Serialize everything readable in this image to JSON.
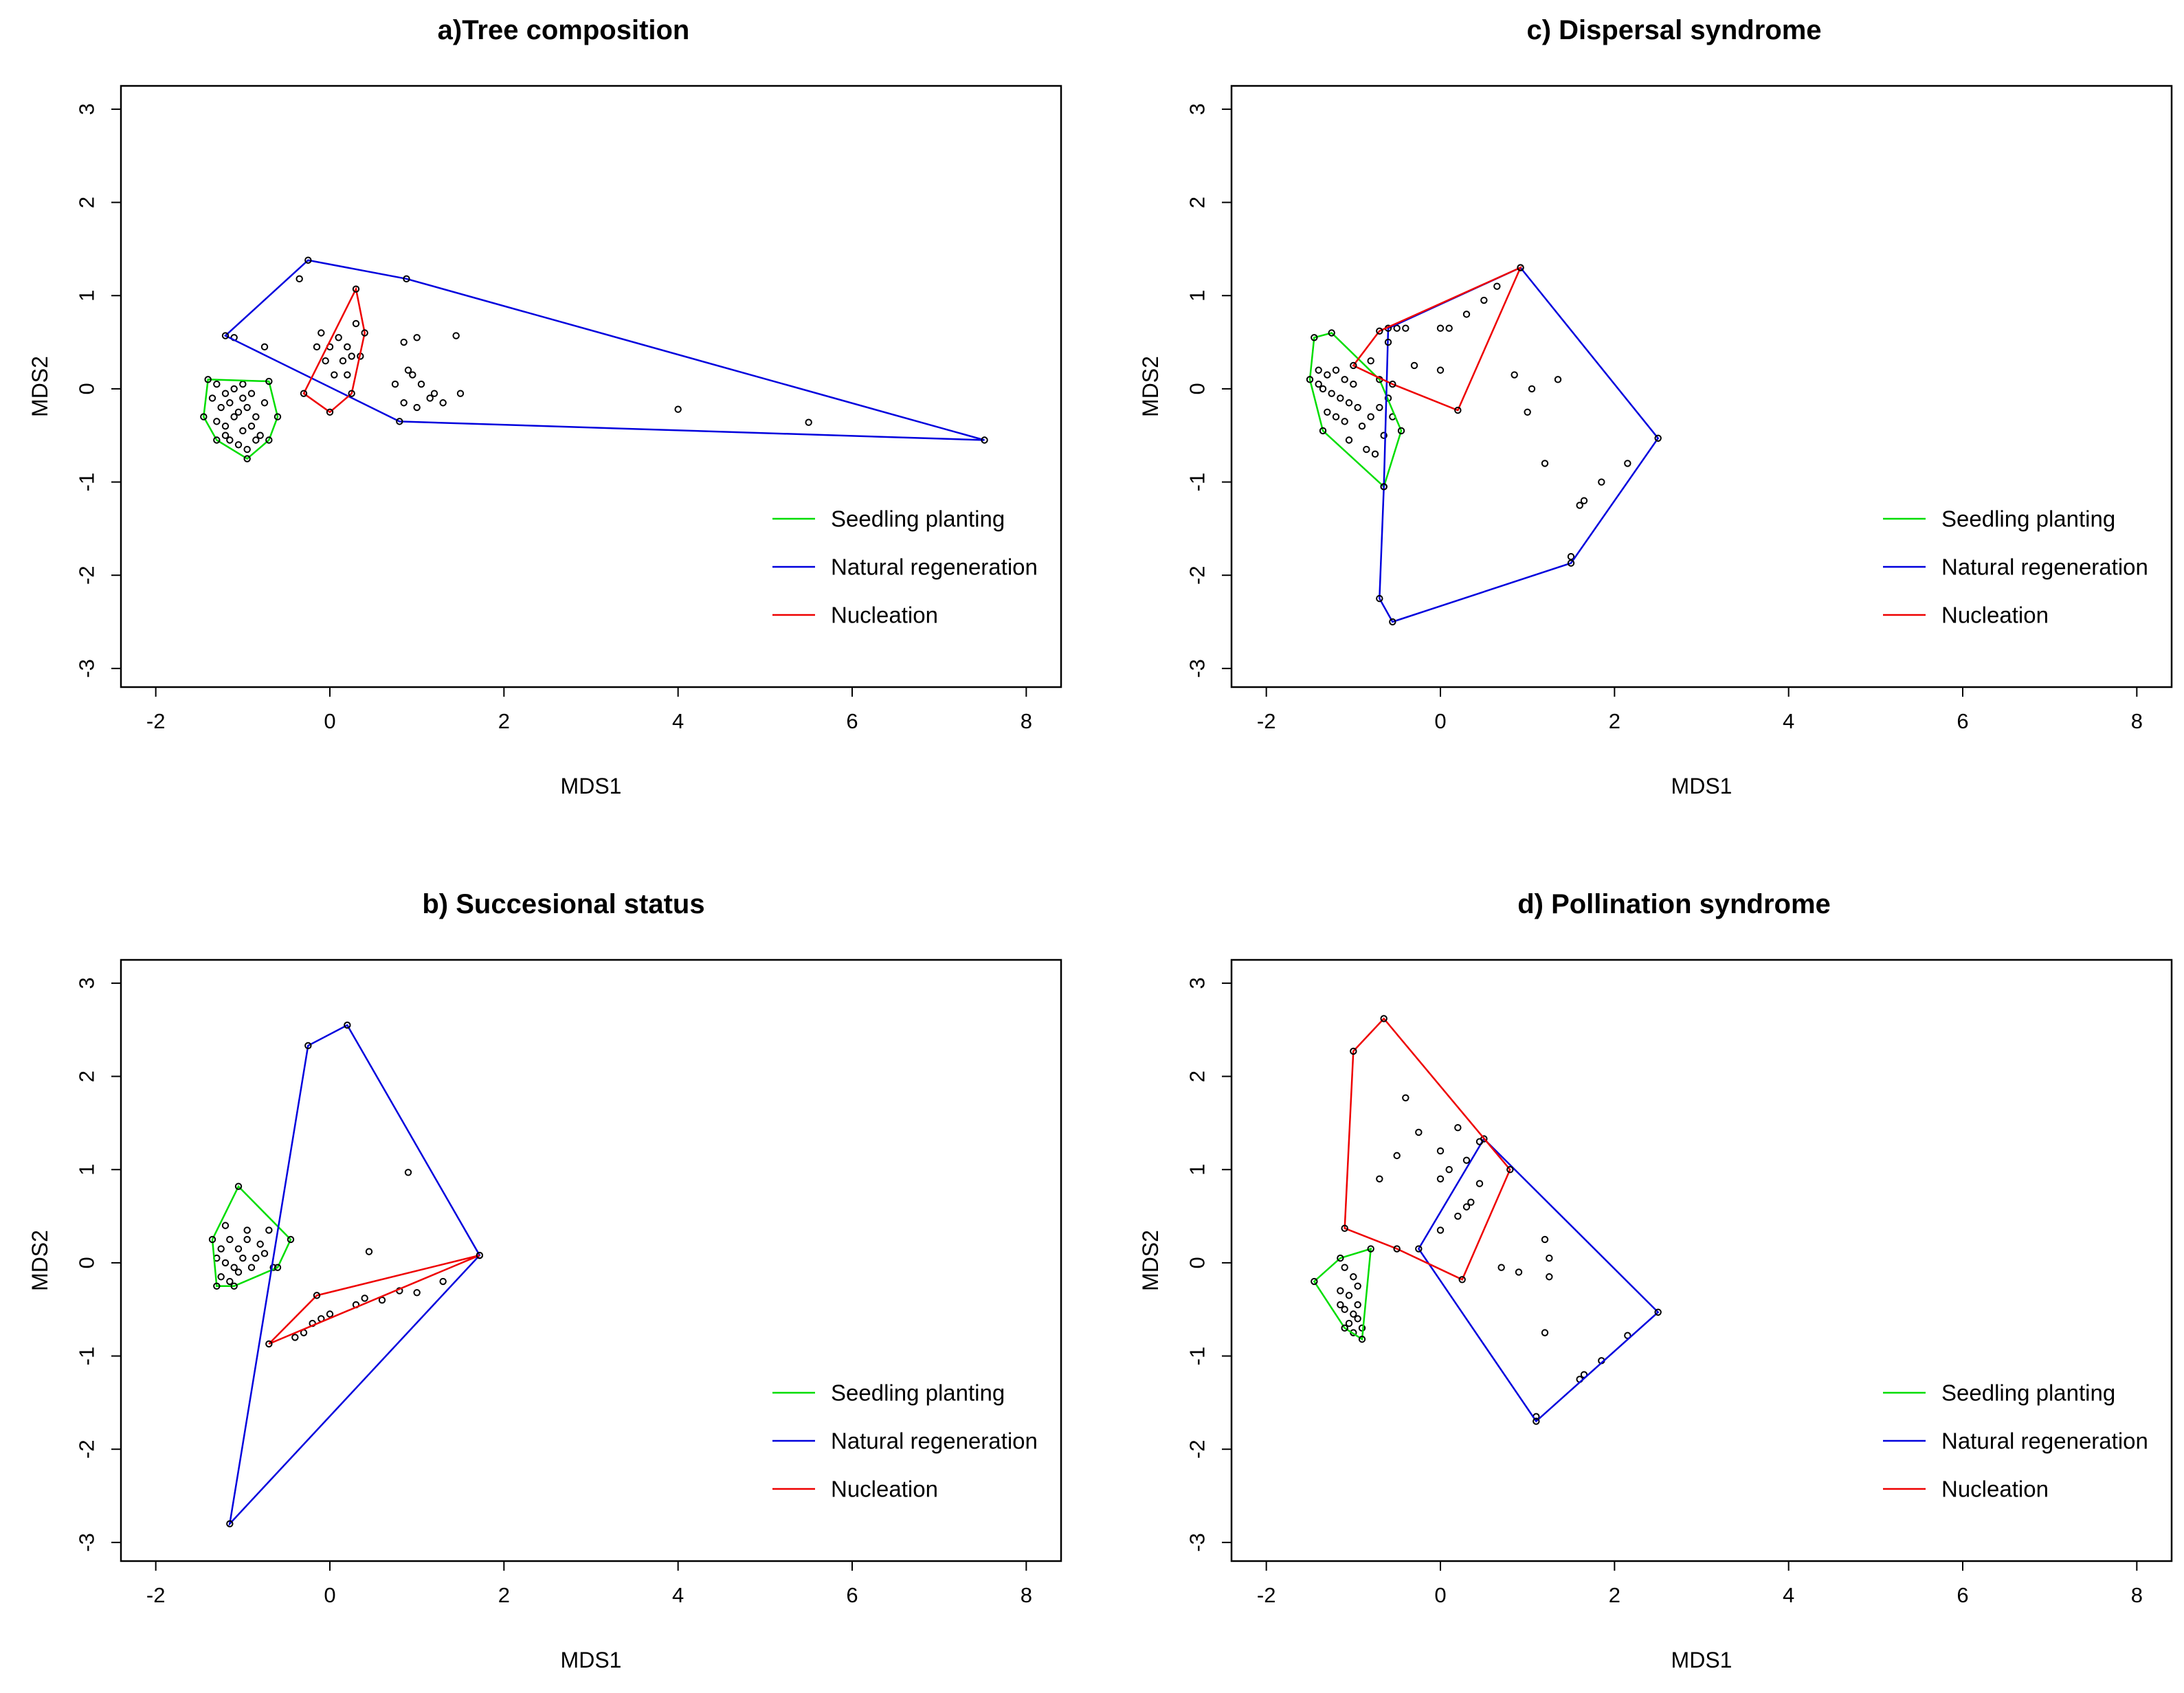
{
  "colors": {
    "seedling": "#00dd00",
    "natural": "#0000dd",
    "nucleation": "#ee0000",
    "axis": "#000000"
  },
  "chart_data": [
    {
      "type": "scatter",
      "title": "a)Tree composition",
      "xlabel": "MDS1",
      "ylabel": "MDS2",
      "xlim": [
        -2.4,
        8.4
      ],
      "ylim": [
        -3.2,
        3.25
      ],
      "xticks": [
        -2,
        0,
        2,
        4,
        6,
        8
      ],
      "yticks": [
        -3,
        -2,
        -1,
        0,
        1,
        2,
        3
      ],
      "legend_position": "bottom-right",
      "series": [
        {
          "name": "Seedling planting",
          "color_key": "seedling",
          "hull": [
            [
              -1.4,
              0.1
            ],
            [
              -0.7,
              0.08
            ],
            [
              -0.6,
              -0.3
            ],
            [
              -0.7,
              -0.55
            ],
            [
              -0.95,
              -0.75
            ],
            [
              -1.3,
              -0.55
            ],
            [
              -1.45,
              -0.3
            ]
          ],
          "points": [
            [
              -1.3,
              0.05
            ],
            [
              -1.2,
              -0.05
            ],
            [
              -1.1,
              0.0
            ],
            [
              -1.0,
              0.05
            ],
            [
              -0.9,
              -0.05
            ],
            [
              -1.25,
              -0.2
            ],
            [
              -1.15,
              -0.15
            ],
            [
              -1.05,
              -0.25
            ],
            [
              -0.95,
              -0.2
            ],
            [
              -0.85,
              -0.3
            ],
            [
              -1.3,
              -0.35
            ],
            [
              -1.2,
              -0.4
            ],
            [
              -1.1,
              -0.3
            ],
            [
              -1.0,
              -0.45
            ],
            [
              -0.9,
              -0.4
            ],
            [
              -0.8,
              -0.5
            ],
            [
              -1.15,
              -0.55
            ],
            [
              -1.05,
              -0.6
            ],
            [
              -0.95,
              -0.65
            ],
            [
              -1.35,
              -0.1
            ],
            [
              -0.75,
              -0.15
            ],
            [
              -1.0,
              -0.1
            ],
            [
              -1.2,
              -0.5
            ],
            [
              -0.85,
              -0.55
            ]
          ]
        },
        {
          "name": "Natural regeneration",
          "color_key": "natural",
          "hull": [
            [
              -1.2,
              0.57
            ],
            [
              -0.25,
              1.38
            ],
            [
              0.88,
              1.18
            ],
            [
              7.52,
              -0.55
            ],
            [
              0.8,
              -0.35
            ]
          ],
          "points": [
            [
              -1.1,
              0.55
            ],
            [
              -0.35,
              1.18
            ],
            [
              -0.75,
              0.45
            ],
            [
              0.85,
              0.5
            ],
            [
              1.0,
              0.55
            ],
            [
              1.45,
              0.57
            ],
            [
              0.75,
              0.05
            ],
            [
              0.95,
              0.15
            ],
            [
              1.05,
              0.05
            ],
            [
              1.2,
              -0.05
            ],
            [
              1.3,
              -0.15
            ],
            [
              1.5,
              -0.05
            ],
            [
              0.85,
              -0.15
            ],
            [
              1.0,
              -0.2
            ],
            [
              1.15,
              -0.1
            ],
            [
              4.0,
              -0.22
            ],
            [
              5.5,
              -0.36
            ],
            [
              0.9,
              0.2
            ]
          ]
        },
        {
          "name": "Nucleation",
          "color_key": "nucleation",
          "hull": [
            [
              -0.3,
              -0.05
            ],
            [
              0.3,
              1.07
            ],
            [
              0.4,
              0.6
            ],
            [
              0.25,
              -0.05
            ],
            [
              0.0,
              -0.25
            ]
          ],
          "points": [
            [
              -0.1,
              0.6
            ],
            [
              0.0,
              0.45
            ],
            [
              0.1,
              0.55
            ],
            [
              0.2,
              0.45
            ],
            [
              -0.05,
              0.3
            ],
            [
              0.15,
              0.3
            ],
            [
              0.25,
              0.35
            ],
            [
              0.05,
              0.15
            ],
            [
              0.2,
              0.15
            ],
            [
              0.35,
              0.35
            ],
            [
              -0.15,
              0.45
            ],
            [
              0.3,
              0.7
            ]
          ]
        }
      ]
    },
    {
      "type": "scatter",
      "title": "c) Dispersal syndrome",
      "xlabel": "MDS1",
      "ylabel": "MDS2",
      "xlim": [
        -2.4,
        8.4
      ],
      "ylim": [
        -3.2,
        3.25
      ],
      "xticks": [
        -2,
        0,
        2,
        4,
        6,
        8
      ],
      "yticks": [
        -3,
        -2,
        -1,
        0,
        1,
        2,
        3
      ],
      "legend_position": "bottom-right",
      "series": [
        {
          "name": "Seedling planting",
          "color_key": "seedling",
          "hull": [
            [
              -1.45,
              0.55
            ],
            [
              -1.25,
              0.6
            ],
            [
              -0.7,
              0.1
            ],
            [
              -0.45,
              -0.45
            ],
            [
              -0.65,
              -1.05
            ],
            [
              -1.35,
              -0.45
            ],
            [
              -1.5,
              0.1
            ]
          ],
          "points": [
            [
              -1.4,
              0.2
            ],
            [
              -1.3,
              0.15
            ],
            [
              -1.2,
              0.2
            ],
            [
              -1.1,
              0.1
            ],
            [
              -1.0,
              0.05
            ],
            [
              -1.35,
              0.0
            ],
            [
              -1.25,
              -0.05
            ],
            [
              -1.15,
              -0.1
            ],
            [
              -1.05,
              -0.15
            ],
            [
              -0.95,
              -0.2
            ],
            [
              -1.3,
              -0.25
            ],
            [
              -1.2,
              -0.3
            ],
            [
              -1.1,
              -0.35
            ],
            [
              -0.9,
              -0.4
            ],
            [
              -0.8,
              -0.3
            ],
            [
              -0.7,
              -0.2
            ],
            [
              -0.6,
              -0.1
            ],
            [
              -0.55,
              -0.3
            ],
            [
              -0.65,
              -0.5
            ],
            [
              -0.85,
              -0.65
            ],
            [
              -1.05,
              -0.55
            ],
            [
              -1.4,
              0.05
            ],
            [
              -0.75,
              -0.7
            ]
          ]
        },
        {
          "name": "Natural regeneration",
          "color_key": "natural",
          "hull": [
            [
              -0.6,
              0.65
            ],
            [
              0.92,
              1.3
            ],
            [
              2.5,
              -0.53
            ],
            [
              1.5,
              -1.87
            ],
            [
              -0.55,
              -2.5
            ],
            [
              -0.7,
              -2.25
            ],
            [
              -0.65,
              -1.05
            ]
          ],
          "points": [
            [
              -0.5,
              0.65
            ],
            [
              -0.4,
              0.65
            ],
            [
              0.0,
              0.65
            ],
            [
              0.1,
              0.65
            ],
            [
              0.3,
              0.8
            ],
            [
              0.5,
              0.95
            ],
            [
              0.65,
              1.1
            ],
            [
              0.85,
              0.15
            ],
            [
              1.05,
              0.0
            ],
            [
              1.35,
              0.1
            ],
            [
              1.0,
              -0.25
            ],
            [
              1.2,
              -0.8
            ],
            [
              1.6,
              -1.25
            ],
            [
              1.65,
              -1.2
            ],
            [
              1.85,
              -1.0
            ],
            [
              2.15,
              -0.8
            ],
            [
              1.5,
              -1.8
            ]
          ]
        },
        {
          "name": "Nucleation",
          "color_key": "nucleation",
          "hull": [
            [
              -1.0,
              0.25
            ],
            [
              -0.7,
              0.62
            ],
            [
              0.92,
              1.3
            ],
            [
              0.2,
              -0.23
            ],
            [
              -0.55,
              0.05
            ]
          ],
          "points": [
            [
              -0.8,
              0.3
            ],
            [
              -0.3,
              0.25
            ],
            [
              0.0,
              0.2
            ],
            [
              -0.6,
              0.5
            ]
          ]
        }
      ]
    },
    {
      "type": "scatter",
      "title": "b) Succesional status",
      "xlabel": "MDS1",
      "ylabel": "MDS2",
      "xlim": [
        -2.4,
        8.4
      ],
      "ylim": [
        -3.2,
        3.25
      ],
      "xticks": [
        -2,
        0,
        2,
        4,
        6,
        8
      ],
      "yticks": [
        -3,
        -2,
        -1,
        0,
        1,
        2,
        3
      ],
      "legend_position": "bottom-right",
      "series": [
        {
          "name": "Seedling planting",
          "color_key": "seedling",
          "hull": [
            [
              -1.05,
              0.82
            ],
            [
              -0.45,
              0.25
            ],
            [
              -0.6,
              -0.05
            ],
            [
              -1.1,
              -0.25
            ],
            [
              -1.3,
              -0.25
            ],
            [
              -1.35,
              0.25
            ]
          ],
          "points": [
            [
              -1.25,
              0.15
            ],
            [
              -1.15,
              0.25
            ],
            [
              -1.05,
              0.15
            ],
            [
              -0.95,
              0.25
            ],
            [
              -0.85,
              0.05
            ],
            [
              -1.2,
              0.0
            ],
            [
              -1.1,
              -0.05
            ],
            [
              -1.0,
              0.05
            ],
            [
              -0.9,
              -0.05
            ],
            [
              -0.8,
              0.2
            ],
            [
              -1.25,
              -0.15
            ],
            [
              -1.15,
              -0.2
            ],
            [
              -1.05,
              -0.1
            ],
            [
              -0.95,
              0.35
            ],
            [
              -0.75,
              0.1
            ],
            [
              -1.3,
              0.05
            ],
            [
              -0.7,
              0.35
            ],
            [
              -1.2,
              0.4
            ],
            [
              -0.65,
              -0.05
            ]
          ]
        },
        {
          "name": "Natural regeneration",
          "color_key": "natural",
          "hull": [
            [
              -0.25,
              2.33
            ],
            [
              0.2,
              2.55
            ],
            [
              1.72,
              0.08
            ],
            [
              -1.15,
              -2.8
            ]
          ],
          "points": [
            [
              0.9,
              0.97
            ],
            [
              0.45,
              0.12
            ]
          ]
        },
        {
          "name": "Nucleation",
          "color_key": "nucleation",
          "hull": [
            [
              -0.7,
              -0.87
            ],
            [
              1.72,
              0.08
            ],
            [
              -0.15,
              -0.35
            ]
          ],
          "points": [
            [
              -0.4,
              -0.8
            ],
            [
              -0.3,
              -0.75
            ],
            [
              -0.2,
              -0.65
            ],
            [
              -0.1,
              -0.6
            ],
            [
              0.0,
              -0.55
            ],
            [
              0.3,
              -0.45
            ],
            [
              0.4,
              -0.38
            ],
            [
              0.6,
              -0.4
            ],
            [
              0.8,
              -0.3
            ],
            [
              1.0,
              -0.32
            ],
            [
              1.3,
              -0.2
            ]
          ]
        }
      ]
    },
    {
      "type": "scatter",
      "title": "d) Pollination syndrome",
      "xlabel": "MDS1",
      "ylabel": "MDS2",
      "xlim": [
        -2.4,
        8.4
      ],
      "ylim": [
        -3.2,
        3.25
      ],
      "xticks": [
        -2,
        0,
        2,
        4,
        6,
        8
      ],
      "yticks": [
        -3,
        -2,
        -1,
        0,
        1,
        2,
        3
      ],
      "legend_position": "bottom-right",
      "series": [
        {
          "name": "Seedling planting",
          "color_key": "seedling",
          "hull": [
            [
              -1.45,
              -0.2
            ],
            [
              -1.15,
              0.05
            ],
            [
              -0.8,
              0.15
            ],
            [
              -0.9,
              -0.82
            ],
            [
              -1.1,
              -0.7
            ]
          ],
          "points": [
            [
              -1.1,
              -0.05
            ],
            [
              -1.0,
              -0.15
            ],
            [
              -1.15,
              -0.3
            ],
            [
              -1.05,
              -0.35
            ],
            [
              -0.95,
              -0.45
            ],
            [
              -1.1,
              -0.5
            ],
            [
              -1.0,
              -0.55
            ],
            [
              -0.95,
              -0.6
            ],
            [
              -1.05,
              -0.65
            ],
            [
              -0.9,
              -0.7
            ],
            [
              -1.0,
              -0.75
            ],
            [
              -1.15,
              -0.45
            ],
            [
              -0.95,
              -0.25
            ]
          ]
        },
        {
          "name": "Natural regeneration",
          "color_key": "natural",
          "hull": [
            [
              -0.25,
              0.15
            ],
            [
              0.5,
              1.33
            ],
            [
              2.5,
              -0.53
            ],
            [
              1.1,
              -1.7
            ]
          ],
          "points": [
            [
              0.0,
              0.35
            ],
            [
              0.2,
              0.5
            ],
            [
              0.35,
              0.65
            ],
            [
              0.45,
              0.85
            ],
            [
              0.7,
              -0.05
            ],
            [
              0.9,
              -0.1
            ],
            [
              1.2,
              0.25
            ],
            [
              1.25,
              0.05
            ],
            [
              1.25,
              -0.15
            ],
            [
              1.2,
              -0.75
            ],
            [
              1.6,
              -1.25
            ],
            [
              1.65,
              -1.2
            ],
            [
              1.85,
              -1.05
            ],
            [
              2.15,
              -0.78
            ],
            [
              1.1,
              -1.65
            ]
          ]
        },
        {
          "name": "Nucleation",
          "color_key": "nucleation",
          "hull": [
            [
              -1.1,
              0.37
            ],
            [
              -1.0,
              2.27
            ],
            [
              -0.65,
              2.62
            ],
            [
              0.8,
              1.0
            ],
            [
              0.25,
              -0.18
            ],
            [
              -0.5,
              0.15
            ]
          ],
          "points": [
            [
              -0.4,
              1.77
            ],
            [
              -0.25,
              1.4
            ],
            [
              -0.5,
              1.15
            ],
            [
              -0.7,
              0.9
            ],
            [
              0.0,
              1.2
            ],
            [
              0.2,
              1.45
            ],
            [
              0.3,
              1.1
            ],
            [
              0.45,
              1.3
            ],
            [
              0.0,
              0.9
            ],
            [
              0.1,
              1.0
            ],
            [
              0.3,
              0.6
            ]
          ]
        }
      ]
    }
  ]
}
